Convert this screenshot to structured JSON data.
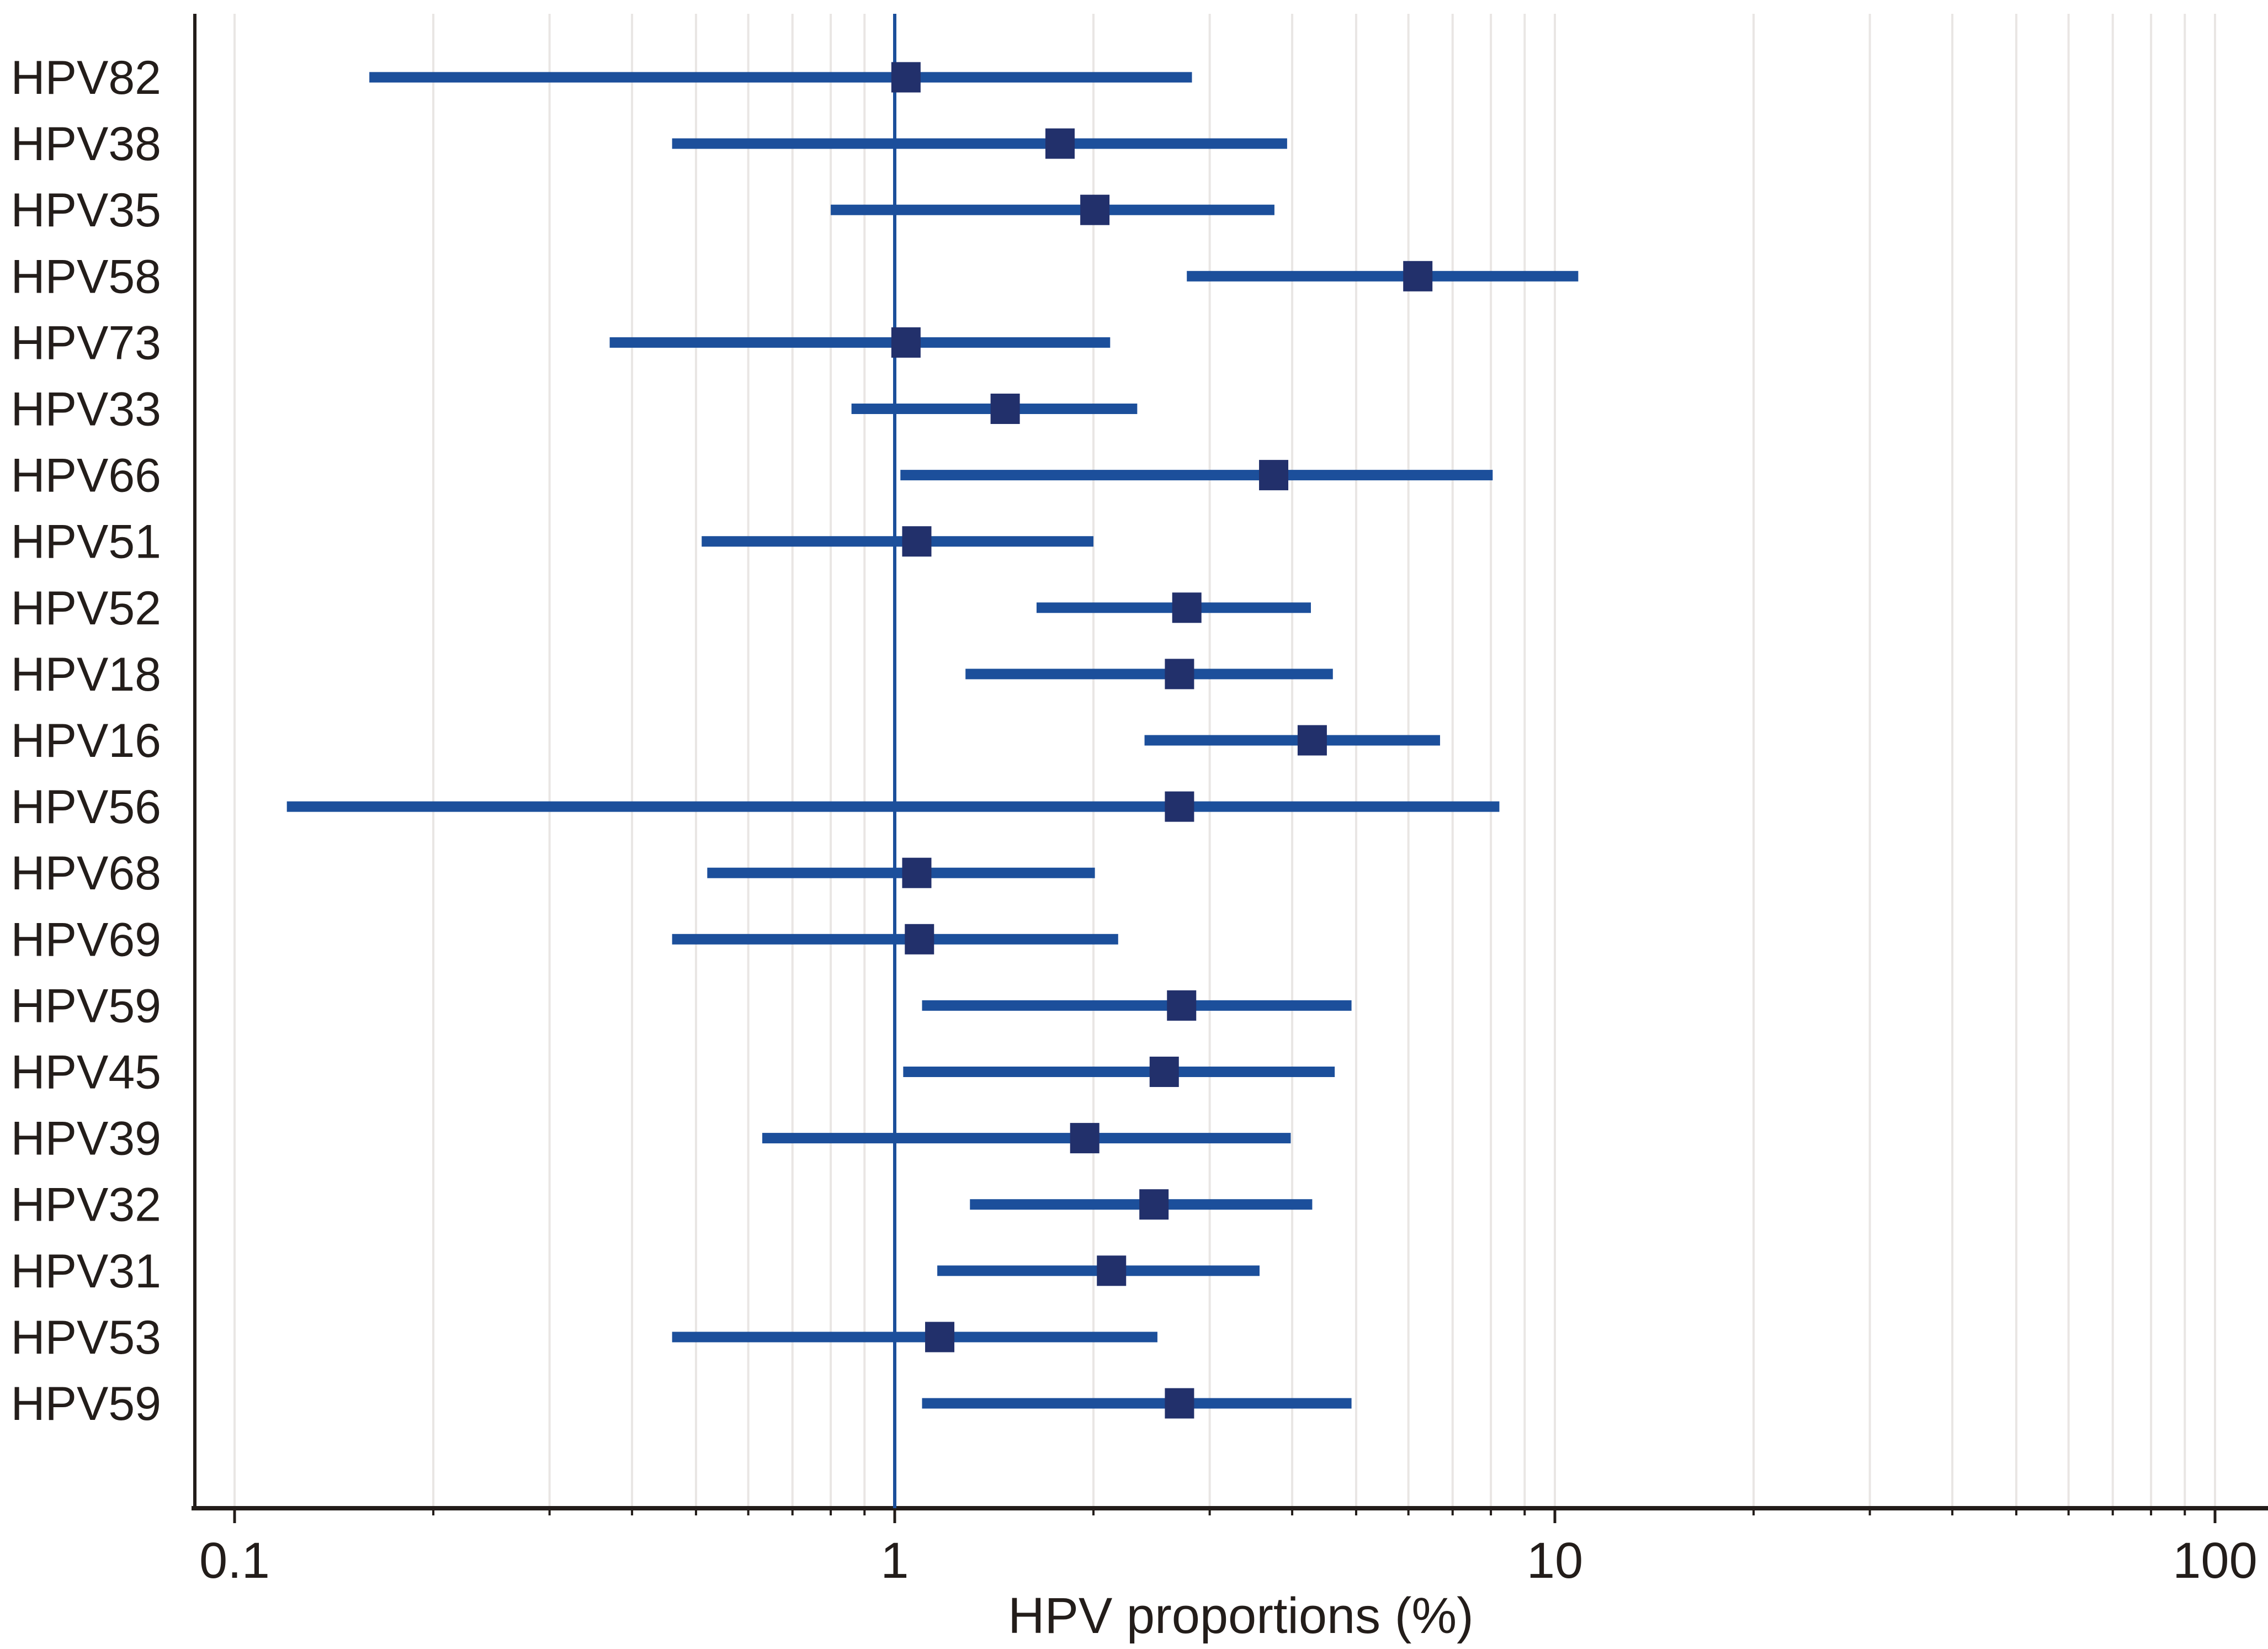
{
  "chart_data": {
    "type": "scatter",
    "subtype": "forest-plot",
    "title": "",
    "xlabel": "HPV proportions (%)",
    "ylabel": "",
    "x_scale": "log",
    "xlim": [
      0.087,
      120
    ],
    "grid": "vertical-log-minor",
    "legend": "none",
    "reference_line_x": 1,
    "x_ticks_major": [
      0.1,
      1,
      10,
      100
    ],
    "x_tick_labels": [
      "0.1",
      "1",
      "10",
      "100"
    ],
    "rows": [
      {
        "label": "HPV82",
        "estimate": 1.04,
        "ci_low": 0.16,
        "ci_high": 2.82
      },
      {
        "label": "HPV38",
        "estimate": 1.78,
        "ci_low": 0.46,
        "ci_high": 3.93
      },
      {
        "label": "HPV35",
        "estimate": 2.01,
        "ci_low": 0.8,
        "ci_high": 3.76
      },
      {
        "label": "HPV58",
        "estimate": 6.2,
        "ci_low": 2.77,
        "ci_high": 10.85
      },
      {
        "label": "HPV73",
        "estimate": 1.04,
        "ci_low": 0.37,
        "ci_high": 2.12
      },
      {
        "label": "HPV33",
        "estimate": 1.47,
        "ci_low": 0.86,
        "ci_high": 2.33
      },
      {
        "label": "HPV66",
        "estimate": 3.75,
        "ci_low": 1.02,
        "ci_high": 8.05
      },
      {
        "label": "HPV51",
        "estimate": 1.08,
        "ci_low": 0.51,
        "ci_high": 2.0
      },
      {
        "label": "HPV52",
        "estimate": 2.77,
        "ci_low": 1.64,
        "ci_high": 4.27
      },
      {
        "label": "HPV18",
        "estimate": 2.7,
        "ci_low": 1.28,
        "ci_high": 4.61
      },
      {
        "label": "HPV16",
        "estimate": 4.29,
        "ci_low": 2.39,
        "ci_high": 6.7
      },
      {
        "label": "HPV56",
        "estimate": 2.7,
        "ci_low": 0.12,
        "ci_high": 8.24
      },
      {
        "label": "HPV68",
        "estimate": 1.08,
        "ci_low": 0.52,
        "ci_high": 2.01
      },
      {
        "label": "HPV69",
        "estimate": 1.09,
        "ci_low": 0.46,
        "ci_high": 2.18
      },
      {
        "label": "HPV59",
        "estimate": 2.72,
        "ci_low": 1.1,
        "ci_high": 4.92
      },
      {
        "label": "HPV45",
        "estimate": 2.56,
        "ci_low": 1.03,
        "ci_high": 4.64
      },
      {
        "label": "HPV39",
        "estimate": 1.94,
        "ci_low": 0.63,
        "ci_high": 3.98
      },
      {
        "label": "HPV32",
        "estimate": 2.47,
        "ci_low": 1.3,
        "ci_high": 4.29
      },
      {
        "label": "HPV31",
        "estimate": 2.13,
        "ci_low": 1.16,
        "ci_high": 3.57
      },
      {
        "label": "HPV53",
        "estimate": 1.17,
        "ci_low": 0.46,
        "ci_high": 2.5
      },
      {
        "label": "HPV59",
        "estimate": 2.7,
        "ci_low": 1.1,
        "ci_high": 4.92
      }
    ],
    "colors": {
      "ci_line": "#1c4f9b",
      "marker": "#22306b",
      "reference_line": "#1c4f9b",
      "gridline": "#e9e6e4",
      "axis": "#231d1a",
      "text": "#231d1a",
      "background": "#ffffff"
    }
  }
}
